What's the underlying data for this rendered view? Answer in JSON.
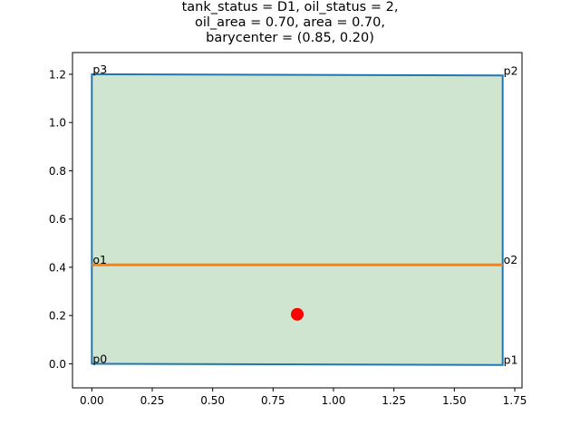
{
  "chart_data": {
    "type": "line",
    "title_lines": [
      "tank_status = D1, oil_status = 2,",
      "oil_area = 0.70, area = 0.70,",
      "barycenter = (0.85, 0.20)"
    ],
    "xlim": [
      -0.08,
      1.78
    ],
    "ylim": [
      -0.1,
      1.29
    ],
    "x_ticks": [
      0.0,
      0.25,
      0.5,
      0.75,
      1.0,
      1.25,
      1.5,
      1.75
    ],
    "x_tick_labels": [
      "0.00",
      "0.25",
      "0.50",
      "0.75",
      "1.00",
      "1.25",
      "1.50",
      "1.75"
    ],
    "y_ticks": [
      0.0,
      0.2,
      0.4,
      0.6,
      0.8,
      1.0,
      1.2
    ],
    "y_tick_labels": [
      "0.0",
      "0.2",
      "0.4",
      "0.6",
      "0.8",
      "1.0",
      "1.2"
    ],
    "grid": false,
    "tank_polygon": {
      "color": "#1f77b4",
      "fill": "#cfe5cf",
      "points": [
        {
          "label": "p0",
          "x": 0.0,
          "y": 0.0
        },
        {
          "label": "p1",
          "x": 1.7,
          "y": -0.005
        },
        {
          "label": "p2",
          "x": 1.7,
          "y": 1.195
        },
        {
          "label": "p3",
          "x": 0.0,
          "y": 1.2
        }
      ]
    },
    "oil_line": {
      "color": "#ff7f0e",
      "points": [
        {
          "label": "o1",
          "x": 0.0,
          "y": 0.41
        },
        {
          "label": "o2",
          "x": 1.7,
          "y": 0.41
        }
      ]
    },
    "barycenter": {
      "x": 0.85,
      "y": 0.205,
      "color": "#ff0000"
    }
  }
}
